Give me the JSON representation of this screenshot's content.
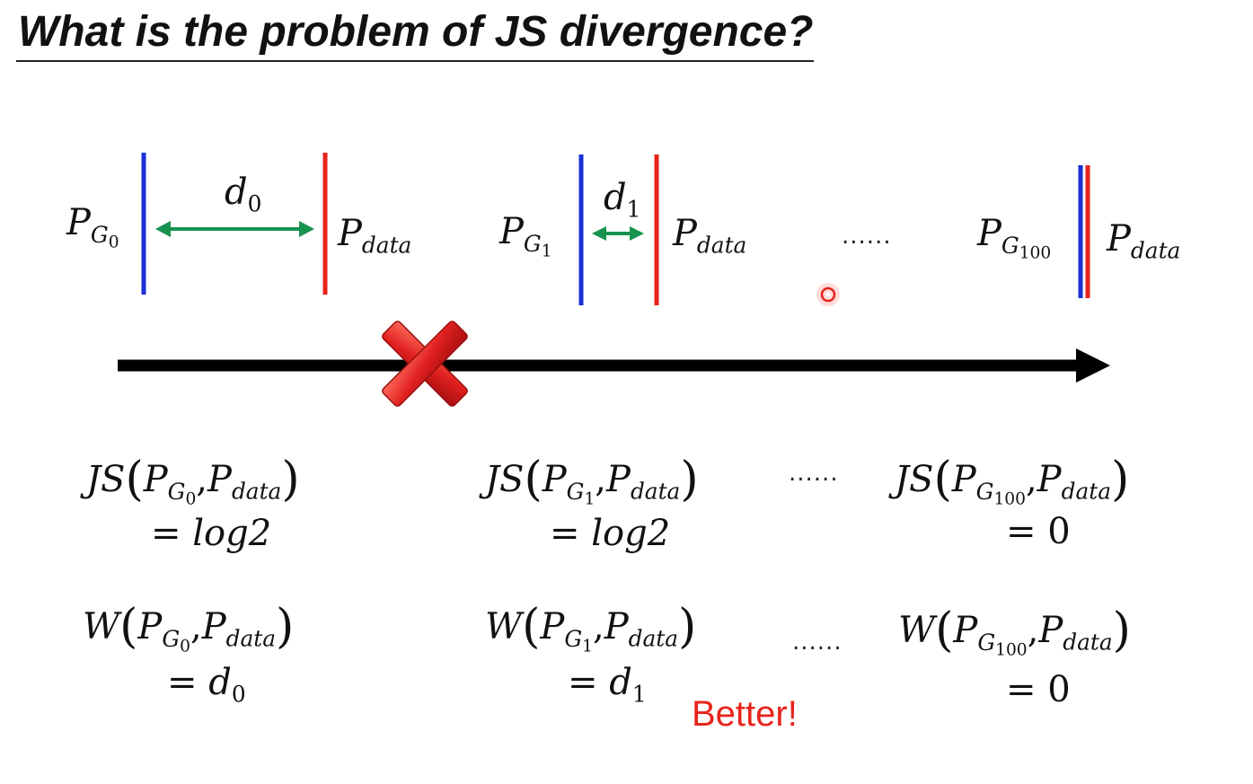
{
  "slide": {
    "title": "What is the problem of JS divergence?",
    "better_note": "Better!",
    "ellipsis": "......"
  },
  "symbols": {
    "P": "P",
    "G": "G",
    "data": "data",
    "d": "d",
    "sub_0": "0",
    "sub_1": "1",
    "sub_100": "100",
    "JS": "JS",
    "W": "W",
    "comma": ",",
    "open_paren": "(",
    "close_paren": ")",
    "eq_log2": "= log2",
    "eq": "=",
    "zero": "0"
  },
  "colors": {
    "generator_line": "#1a2fd6",
    "data_line": "#e8231b",
    "distance_arrow": "#17924f",
    "time_arrow": "#000000",
    "cross_mark": "#e02020",
    "better_text": "#e8231b"
  },
  "icons": {
    "wrong_mark": "red-x-cross-icon",
    "pointer": "laser-pointer-dot-icon"
  }
}
